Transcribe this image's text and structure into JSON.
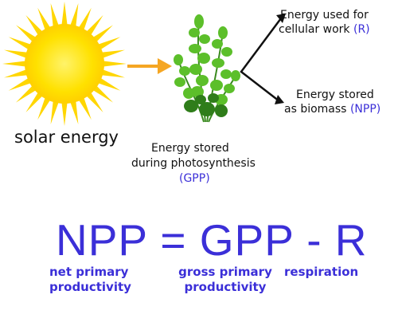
{
  "labels": {
    "solar_energy": "solar energy",
    "energy_used_line1": "Energy used for",
    "energy_used_line2": "cellular work",
    "r_abbr": "(R)",
    "energy_biomass_line1": "Energy stored",
    "energy_biomass_line2": "as biomass",
    "npp_abbr": "(NPP)",
    "gpp_line1": "Energy stored",
    "gpp_line2": "during photosynthesis",
    "gpp_abbr": "(GPP)"
  },
  "equation": {
    "text": "NPP = GPP - R",
    "npp_label": "net primary productivity",
    "gpp_label": "gross primary productivity",
    "r_label": "respiration"
  },
  "colors": {
    "accent_blue": "#3b2fd8",
    "sun_yellow": "#ffd600",
    "arrow_orange": "#f5a623",
    "plant_green": "#4caf2e"
  },
  "icons": {
    "sun": "sun-icon",
    "arrow": "arrow-right-icon",
    "plant": "seaweed-plant-icon",
    "branch": "branching-arrows-icon"
  }
}
